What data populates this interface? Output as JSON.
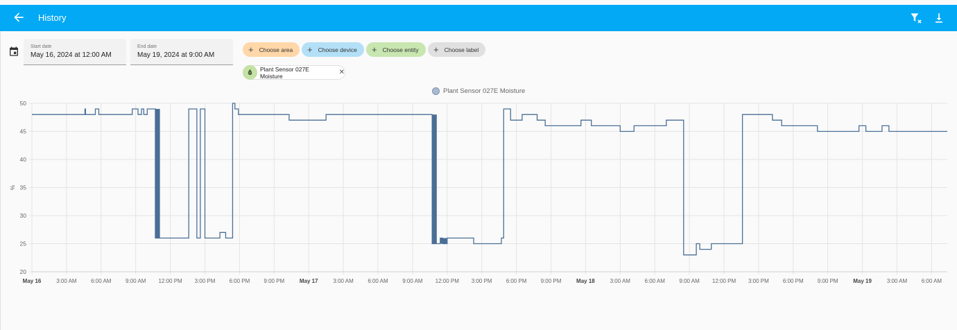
{
  "header": {
    "title": "History",
    "back_icon": "arrow-left-icon",
    "actions": [
      {
        "name": "clear-filter-button",
        "icon": "filter-remove-icon"
      },
      {
        "name": "download-button",
        "icon": "download-icon"
      }
    ]
  },
  "filters": {
    "calendar_icon": "calendar-icon",
    "start_date": {
      "label": "Start date",
      "value": "May 16, 2024 at 12:00 AM"
    },
    "end_date": {
      "label": "End date",
      "value": "May 19, 2024 at 9:00 AM"
    },
    "chips": [
      {
        "label": "Choose area",
        "color": "#ffd7a8"
      },
      {
        "label": "Choose device",
        "color": "#b3e0f7"
      },
      {
        "label": "Choose entity",
        "color": "#c8e6b0"
      },
      {
        "label": "Choose label",
        "color": "#e0e0e0"
      }
    ],
    "selected_entity": {
      "label": "Plant Sensor 027E Moisture",
      "icon": "water-drop-icon",
      "remove_icon": "close-icon"
    }
  },
  "colors": {
    "header_bg": "#03a9f4",
    "series": "#4a6f96"
  },
  "chart_data": {
    "type": "line",
    "step": true,
    "title": "",
    "legend": [
      "Plant Sensor 027E Moisture"
    ],
    "legend_position": "top",
    "xlabel": "",
    "ylabel": "%",
    "ylim": [
      20,
      50
    ],
    "yticks": [
      20,
      25,
      30,
      35,
      40,
      45,
      50
    ],
    "grid": true,
    "xticks": [
      "May 16",
      "3:00 AM",
      "6:00 AM",
      "9:00 AM",
      "12:00 PM",
      "3:00 PM",
      "6:00 PM",
      "9:00 PM",
      "May 17",
      "3:00 AM",
      "6:00 AM",
      "9:00 AM",
      "12:00 PM",
      "3:00 PM",
      "6:00 PM",
      "9:00 PM",
      "May 18",
      "3:00 AM",
      "6:00 AM",
      "9:00 AM",
      "12:00 PM",
      "3:00 PM",
      "6:00 PM",
      "9:00 PM",
      "May 19",
      "3:00 AM",
      "6:00 AM"
    ],
    "xticks_major": [
      0,
      8,
      16,
      24
    ],
    "series": [
      {
        "name": "Plant Sensor 027E Moisture",
        "hours": [
          0,
          4.6,
          4.65,
          5.5,
          5.8,
          8.7,
          9.2,
          9.5,
          9.7,
          10.0,
          10.3,
          10.7,
          11.1,
          13.6,
          14.3,
          14.6,
          15.0,
          16.0,
          16.3,
          16.8,
          17.4,
          17.6,
          17.9,
          21.0,
          22.3,
          24.8,
          25.5,
          34.7,
          35.4,
          35.6,
          36.0,
          38.1,
          38.3,
          40.7,
          40.9,
          41.5,
          42.5,
          43.8,
          44.5,
          47.3,
          47.6,
          48.5,
          48.6,
          51.0,
          52.2,
          55.0,
          56.5,
          57.6,
          57.9,
          58.8,
          58.9,
          61.5,
          61.6,
          64.2,
          65.0,
          67.9,
          68.1,
          71.7,
          72.3,
          73.7,
          74.3,
          75.0,
          75.6,
          79.3
        ],
        "values": [
          48,
          49,
          48,
          49,
          48,
          49,
          48,
          49,
          48,
          49,
          49,
          26,
          26,
          49,
          26,
          49,
          26,
          26,
          27,
          26,
          50,
          49,
          48,
          48,
          47,
          47,
          48,
          25,
          26,
          25,
          26,
          26,
          25,
          26,
          49,
          47,
          48,
          47,
          46,
          46,
          47,
          46,
          46,
          45,
          46,
          47,
          23,
          25,
          24,
          24,
          25,
          25,
          48,
          47,
          46,
          46,
          45,
          46,
          45,
          46,
          45,
          45,
          45,
          45
        ]
      }
    ]
  }
}
